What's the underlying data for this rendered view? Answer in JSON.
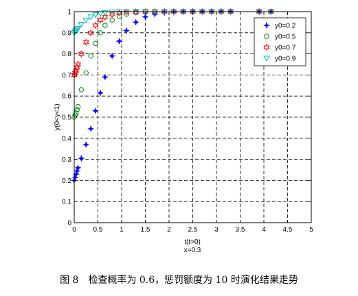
{
  "caption": "图 8　检查概率为 0.6，惩罚额度为 10 时演化结果走势",
  "chart_data": {
    "type": "scatter",
    "xlabel": "t(t>0)",
    "xsublabel": "x=0.3",
    "ylabel": "y(0<y<1)",
    "xlim": [
      0,
      5
    ],
    "ylim": [
      0,
      1
    ],
    "xticks": [
      0,
      0.5,
      1,
      1.5,
      2,
      2.5,
      3,
      3.5,
      4,
      4.5,
      5
    ],
    "xtick_labels": [
      "0",
      "0.5",
      "1",
      "1.5",
      "2",
      "2.5",
      "3",
      "3.5",
      "4",
      "4.5",
      "5"
    ],
    "yticks": [
      0,
      0.1,
      0.2,
      0.3,
      0.4,
      0.5,
      0.6,
      0.7,
      0.8,
      0.9,
      1
    ],
    "ytick_labels": [
      "0",
      "0.1",
      "0.2",
      "0.3",
      "0.4",
      "0.5",
      "0.6",
      "0.7",
      "0.8",
      "0.9",
      "1"
    ],
    "grid": true,
    "legend_position": "top-right",
    "series": [
      {
        "name": "y0=0.2",
        "marker": "star",
        "color": "#0000ff",
        "x": [
          0,
          0.02,
          0.04,
          0.06,
          0.08,
          0.15,
          0.25,
          0.35,
          0.45,
          0.55,
          0.65,
          0.8,
          0.95,
          1.1,
          1.3,
          1.5,
          1.7,
          1.9,
          2.1,
          2.3,
          2.5,
          2.7,
          2.9,
          3.1,
          3.3,
          3.9,
          4.15
        ],
        "y": [
          0.2,
          0.215,
          0.23,
          0.245,
          0.26,
          0.305,
          0.37,
          0.445,
          0.53,
          0.615,
          0.69,
          0.79,
          0.86,
          0.91,
          0.95,
          0.975,
          0.988,
          0.994,
          0.997,
          0.999,
          1,
          1,
          1,
          1,
          1,
          1,
          1
        ]
      },
      {
        "name": "y0=0.5",
        "marker": "circle",
        "color": "#008000",
        "x": [
          0,
          0.02,
          0.04,
          0.06,
          0.08,
          0.15,
          0.25,
          0.35,
          0.45,
          0.55,
          0.65,
          0.8,
          0.95,
          1.1,
          1.3,
          1.5,
          1.7,
          1.9,
          2.1,
          2.3,
          2.5,
          2.7,
          2.9,
          3.1,
          3.3,
          3.9,
          4.15
        ],
        "y": [
          0.5,
          0.51,
          0.52,
          0.535,
          0.55,
          0.63,
          0.71,
          0.79,
          0.85,
          0.9,
          0.935,
          0.96,
          0.978,
          0.988,
          0.995,
          0.998,
          1,
          1,
          1,
          1,
          1,
          1,
          1,
          1,
          1,
          1,
          1
        ]
      },
      {
        "name": "y0=0.7",
        "marker": "hexagram",
        "color": "#ff0000",
        "x": [
          0,
          0.02,
          0.04,
          0.06,
          0.08,
          0.15,
          0.25,
          0.35,
          0.45,
          0.55,
          0.65,
          0.8,
          0.95,
          1.1,
          1.3,
          1.5,
          1.7,
          1.9,
          2.1,
          2.3,
          2.5,
          2.7,
          2.9,
          3.1,
          3.3,
          3.9,
          4.15
        ],
        "y": [
          0.7,
          0.71,
          0.72,
          0.735,
          0.75,
          0.8,
          0.855,
          0.9,
          0.935,
          0.96,
          0.975,
          0.987,
          0.994,
          0.997,
          0.999,
          1,
          1,
          1,
          1,
          1,
          1,
          1,
          1,
          1,
          1,
          1,
          1
        ]
      },
      {
        "name": "y0=0.9",
        "marker": "triangle-down",
        "color": "#00bfbf",
        "x": [
          0,
          0.02,
          0.04,
          0.06,
          0.08,
          0.15,
          0.25,
          0.35,
          0.45,
          0.55,
          0.65,
          0.8,
          0.95,
          1.1,
          1.3,
          1.5,
          1.7,
          1.9,
          2.1,
          2.3,
          2.5,
          2.7,
          2.9,
          3.1,
          3.3,
          3.9,
          4.15
        ],
        "y": [
          0.9,
          0.905,
          0.91,
          0.915,
          0.92,
          0.94,
          0.96,
          0.975,
          0.985,
          0.991,
          0.995,
          0.998,
          0.999,
          1,
          1,
          1,
          1,
          1,
          1,
          1,
          1,
          1,
          1,
          1,
          1,
          1,
          1
        ]
      }
    ]
  }
}
